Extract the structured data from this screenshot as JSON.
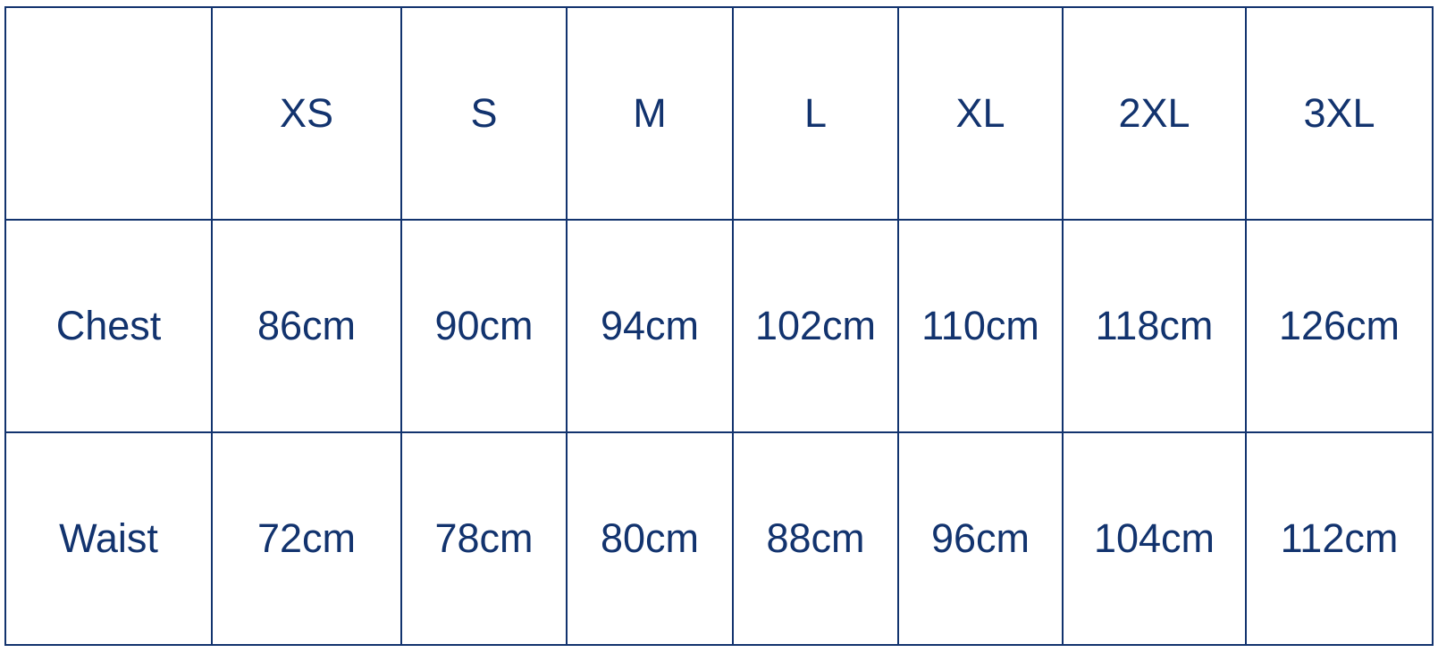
{
  "table": {
    "header": [
      "",
      "XS",
      "S",
      "M",
      "L",
      "XL",
      "2XL",
      "3XL"
    ],
    "rows": [
      {
        "label": "Chest",
        "values": [
          "86cm",
          "90cm",
          "94cm",
          "102cm",
          "110cm",
          "118cm",
          "126cm"
        ]
      },
      {
        "label": "Waist",
        "values": [
          "72cm",
          "78cm",
          "80cm",
          "88cm",
          "96cm",
          "104cm",
          "112cm"
        ]
      }
    ]
  },
  "colors": {
    "border": "#12336e",
    "text": "#12336e",
    "background": "#ffffff"
  }
}
